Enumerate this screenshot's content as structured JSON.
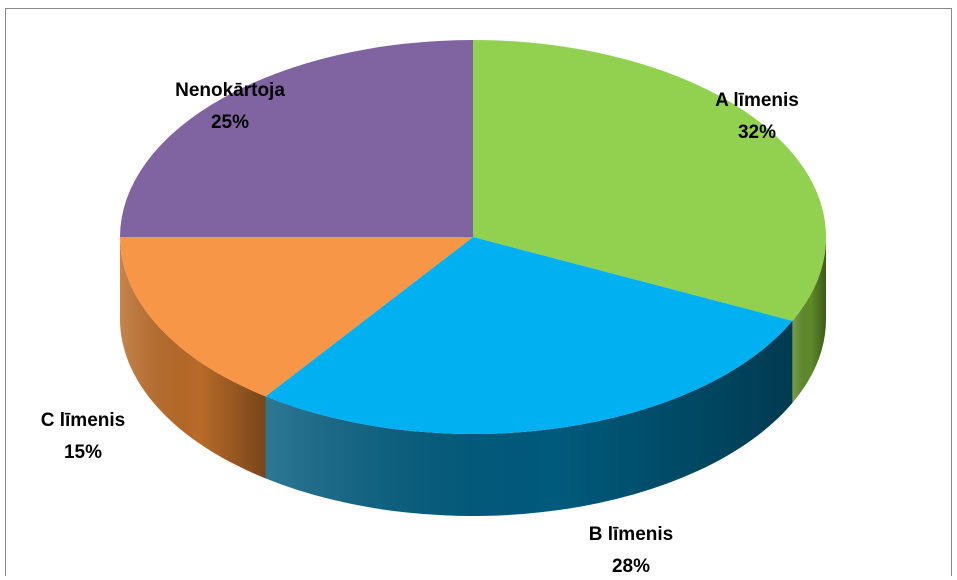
{
  "chart_data": {
    "type": "pie",
    "style": "3d",
    "start_angle_deg": 90,
    "direction": "clockwise",
    "slices": [
      {
        "label": "A līmenis",
        "value": 32,
        "value_label": "32%",
        "color": "#92d050",
        "side_color": "#5e8a2a"
      },
      {
        "label": "B līmenis",
        "value": 28,
        "value_label": "28%",
        "color": "#00b0f0",
        "side_color": "#005a7c"
      },
      {
        "label": "C līmenis",
        "value": 15,
        "value_label": "15%",
        "color": "#f79646",
        "side_color": "#b86a28"
      },
      {
        "label": "Nenokārtoja",
        "value": 25,
        "value_label": "25%",
        "color": "#8064a2",
        "side_color": "#5a4574"
      }
    ],
    "legend": "none",
    "data_labels": "outside"
  }
}
